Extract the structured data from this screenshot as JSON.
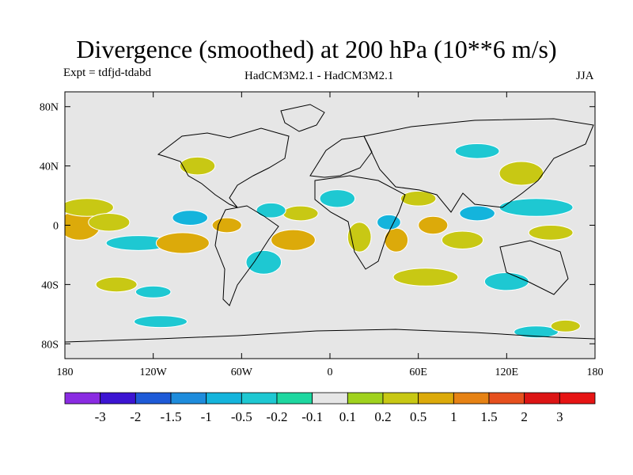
{
  "header": {
    "title": "Divergence (smoothed) at 200 hPa (10**6 m/s)",
    "experiment": "Expt = tdfjd-tdabd",
    "models": "HadCM3M2.1 - HadCM3M2.1",
    "season": "JJA"
  },
  "chart_data": {
    "type": "heatmap",
    "subtype": "global filled-contour map",
    "title": "Divergence (smoothed) at 200 hPa (10**6 m/s)",
    "field": "divergence difference at 200 hPa",
    "units": "10**6 m/s",
    "projection": "cylindrical equidistant",
    "lon_range": [
      -180,
      180
    ],
    "lat_range": [
      -90,
      90
    ],
    "x_ticks": [
      {
        "value": -180,
        "label": "180"
      },
      {
        "value": -120,
        "label": "120W"
      },
      {
        "value": -60,
        "label": "60W"
      },
      {
        "value": 0,
        "label": "0"
      },
      {
        "value": 60,
        "label": "60E"
      },
      {
        "value": 120,
        "label": "120E"
      },
      {
        "value": 180,
        "label": "180"
      }
    ],
    "y_ticks": [
      {
        "value": 80,
        "label": "80N"
      },
      {
        "value": 40,
        "label": "40N"
      },
      {
        "value": 0,
        "label": "0"
      },
      {
        "value": -40,
        "label": "40S"
      },
      {
        "value": -80,
        "label": "80S"
      }
    ],
    "colorbar": {
      "levels": [
        "-3",
        "-2",
        "-1.5",
        "-1",
        "-0.5",
        "-0.2",
        "-0.1",
        "0.1",
        "0.2",
        "0.5",
        "1",
        "1.5",
        "2",
        "3"
      ],
      "colors": [
        "#8a2be2",
        "#3c14d2",
        "#1e5ad7",
        "#1e8cdc",
        "#14b4dc",
        "#1ec8d2",
        "#1ed7a0",
        "#e6e6e6",
        "#a0d21e",
        "#c8c814",
        "#dcaa0a",
        "#e68214",
        "#e6501e",
        "#dc1414",
        "#e61414"
      ]
    },
    "background_color": "#e6e6e6",
    "anomaly_patches": [
      {
        "lon": -170,
        "lat": 0,
        "rx": 14,
        "ry": 10,
        "value": 0.7
      },
      {
        "lon": -165,
        "lat": 12,
        "rx": 18,
        "ry": 6,
        "value": 0.3
      },
      {
        "lon": -150,
        "lat": 2,
        "rx": 14,
        "ry": 6,
        "value": 0.5
      },
      {
        "lon": -130,
        "lat": -12,
        "rx": 22,
        "ry": 5,
        "value": -0.3
      },
      {
        "lon": -100,
        "lat": -12,
        "rx": 18,
        "ry": 7,
        "value": 0.6
      },
      {
        "lon": -95,
        "lat": 5,
        "rx": 12,
        "ry": 5,
        "value": -0.6
      },
      {
        "lon": -70,
        "lat": 0,
        "rx": 10,
        "ry": 5,
        "value": 0.6
      },
      {
        "lon": -45,
        "lat": -25,
        "rx": 12,
        "ry": 8,
        "value": -0.3
      },
      {
        "lon": -25,
        "lat": -10,
        "rx": 15,
        "ry": 7,
        "value": 0.6
      },
      {
        "lon": -20,
        "lat": 8,
        "rx": 12,
        "ry": 5,
        "value": 0.4
      },
      {
        "lon": -40,
        "lat": 10,
        "rx": 10,
        "ry": 5,
        "value": -0.3
      },
      {
        "lon": 5,
        "lat": 18,
        "rx": 12,
        "ry": 6,
        "value": -0.3
      },
      {
        "lon": 20,
        "lat": -8,
        "rx": 8,
        "ry": 10,
        "value": 0.4
      },
      {
        "lon": 45,
        "lat": -10,
        "rx": 8,
        "ry": 8,
        "value": 0.8
      },
      {
        "lon": 40,
        "lat": 2,
        "rx": 8,
        "ry": 5,
        "value": -0.5
      },
      {
        "lon": 70,
        "lat": 0,
        "rx": 10,
        "ry": 6,
        "value": 0.8
      },
      {
        "lon": 60,
        "lat": 18,
        "rx": 12,
        "ry": 5,
        "value": 0.5
      },
      {
        "lon": 90,
        "lat": -10,
        "rx": 14,
        "ry": 6,
        "value": 0.4
      },
      {
        "lon": 100,
        "lat": 8,
        "rx": 12,
        "ry": 5,
        "value": -0.5
      },
      {
        "lon": 140,
        "lat": 12,
        "rx": 25,
        "ry": 6,
        "value": -0.4
      },
      {
        "lon": 150,
        "lat": -5,
        "rx": 15,
        "ry": 5,
        "value": 0.4
      },
      {
        "lon": 130,
        "lat": 35,
        "rx": 15,
        "ry": 8,
        "value": 0.3
      },
      {
        "lon": 100,
        "lat": 50,
        "rx": 15,
        "ry": 5,
        "value": -0.2
      },
      {
        "lon": -145,
        "lat": -40,
        "rx": 14,
        "ry": 5,
        "value": 0.3
      },
      {
        "lon": -120,
        "lat": -45,
        "rx": 12,
        "ry": 4,
        "value": -0.2
      },
      {
        "lon": 65,
        "lat": -35,
        "rx": 22,
        "ry": 6,
        "value": 0.4
      },
      {
        "lon": 120,
        "lat": -38,
        "rx": 15,
        "ry": 6,
        "value": -0.3
      },
      {
        "lon": -90,
        "lat": 40,
        "rx": 12,
        "ry": 6,
        "value": 0.3
      },
      {
        "lon": -115,
        "lat": -65,
        "rx": 18,
        "ry": 4,
        "value": -0.2
      },
      {
        "lon": 140,
        "lat": -72,
        "rx": 15,
        "ry": 4,
        "value": -0.2
      },
      {
        "lon": 160,
        "lat": -68,
        "rx": 10,
        "ry": 4,
        "value": 0.3
      }
    ]
  }
}
